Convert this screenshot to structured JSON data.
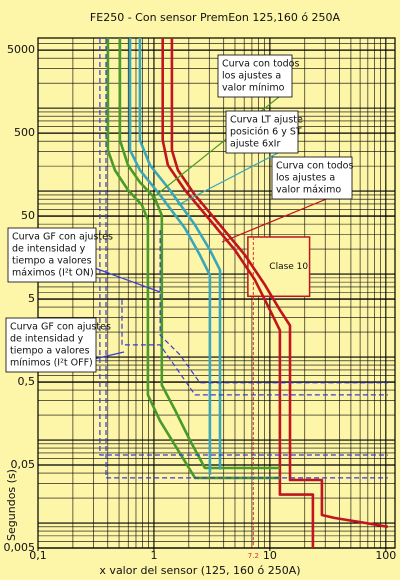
{
  "chart_data": {
    "type": "line",
    "title": "FE250  - Con sensor PremEon 125,160 ó 250A",
    "x_label": "x valor del sensor (125, 160 ó 250A)",
    "y_label": "Segundos (s)",
    "log_x": true,
    "log_y": true,
    "grid": true,
    "xlim": [
      0.1,
      120
    ],
    "ylim": [
      0.005,
      7000
    ],
    "xticks": [
      {
        "value": 0.1,
        "label": "0,1"
      },
      1,
      10,
      100
    ],
    "yticks": [
      {
        "value": 0.005,
        "label": "0,005"
      },
      {
        "value": 0.05,
        "label": "0,05"
      },
      {
        "value": 0.5,
        "label": "0,5"
      },
      5,
      50,
      500,
      5000
    ],
    "series": [
      {
        "color": "#c0141e",
        "dashed": false,
        "x": [
          1.43,
          1.43,
          1.61,
          2.26,
          3.71,
          6.09,
          9.06,
          12.2,
          14.9,
          14.9,
          28.1,
          28.1,
          36.3,
          59.7,
          104
        ],
        "values": [
          7000,
          312,
          179,
          89.6,
          39,
          17,
          7.4,
          3.7,
          2.4,
          0.033,
          0.033,
          0.0125,
          0.0115,
          0.0103,
          0.009
        ]
      },
      {
        "color": "#c0141e",
        "dashed": false,
        "x": [
          1.19,
          1.19,
          1.32,
          1.85,
          3.04,
          4.99,
          7.43,
          10,
          12.2,
          12.2,
          23.5,
          23.5
        ],
        "values": [
          7000,
          412,
          206,
          103,
          44.8,
          19.5,
          8.5,
          3.7,
          2.1,
          0.022,
          0.022,
          0.005
        ]
      },
      {
        "color": "#4a9a2a",
        "dashed": false,
        "x": [
          0.509,
          0.509,
          0.597,
          0.757,
          1.02,
          1.17,
          1.17,
          1.52,
          2.04,
          2.75,
          12.2
        ],
        "values": [
          7000,
          412,
          206,
          128,
          82,
          51,
          0.46,
          0.23,
          0.1,
          0.046,
          0.046
        ]
      },
      {
        "color": "#4a9a2a",
        "dashed": false,
        "x": [
          0.401,
          0.401,
          0.461,
          0.597,
          0.788,
          0.887,
          0.887,
          1.13,
          1.61,
          2.26,
          12.2
        ],
        "values": [
          7000,
          312,
          179,
          103,
          68,
          44.8,
          0.35,
          0.17,
          0.076,
          0.035,
          0.035
        ]
      },
      {
        "color": "#3aa6b9",
        "dashed": false,
        "x": [
          0.757,
          0.757,
          0.924,
          1.37,
          2.26,
          3.04,
          3.71,
          3.71
        ],
        "values": [
          7000,
          412,
          206,
          103,
          39,
          19.5,
          11.2,
          0.044
        ]
      },
      {
        "color": "#3aa6b9",
        "dashed": false,
        "x": [
          0.621,
          0.621,
          0.757,
          1.13,
          1.85,
          2.49,
          3.04,
          3.04
        ],
        "values": [
          7000,
          312,
          179,
          89.6,
          35.8,
          17,
          9.7,
          0.038
        ]
      },
      {
        "color": "#3b3bd6",
        "dashed": true,
        "x": [
          0.342,
          0.342,
          104
        ],
        "values": [
          7000,
          0.066,
          0.066
        ]
      },
      {
        "color": "#3b3bd6",
        "dashed": true,
        "x": [
          0.386,
          0.386,
          104
        ],
        "values": [
          7000,
          0.035,
          0.035
        ]
      },
      {
        "color": "#3b3bd6",
        "dashed": true,
        "x": [
          0.53,
          0.53,
          1.13,
          2.26,
          104
        ],
        "values": [
          4.9,
          1.4,
          1.4,
          0.35,
          0.35
        ]
      },
      {
        "color": "#3b3bd6",
        "dashed": true,
        "x": [
          1.13,
          1.13,
          1.68,
          2.49,
          104
        ],
        "values": [
          33.9,
          1.84,
          1.06,
          0.49,
          0.49
        ]
      }
    ],
    "reference_line": {
      "x": 7.2,
      "color": "#e03030"
    },
    "class_band": {
      "label": "Clase 10",
      "x": [
        6.46,
        22
      ],
      "y": [
        5.4,
        28
      ],
      "color": "#c0141e"
    },
    "annotations": [
      {
        "lines": [
          "Curva con todos",
          "los ajustes a",
          "valor mínimo"
        ],
        "color": "#4a9a2a"
      },
      {
        "lines": [
          "Curva LT ajuste",
          "posición 6 y ST",
          "ajuste 6xIr"
        ],
        "color": "#3aa6b9"
      },
      {
        "lines": [
          "Curva con todos",
          "los ajustes a",
          "valor máximo"
        ],
        "color": "#c0141e"
      },
      {
        "lines": [
          "Curva GF con ajustes",
          "de intensidad y",
          "tiempo a valores",
          "máximos (I²t ON)"
        ],
        "color": "#3b3bd6"
      },
      {
        "lines": [
          "Curva GF con ajustes",
          "de intensidad y",
          "tiempo a valores",
          "mínimos (I²t OFF)"
        ],
        "color": "#3b3bd6"
      }
    ]
  }
}
